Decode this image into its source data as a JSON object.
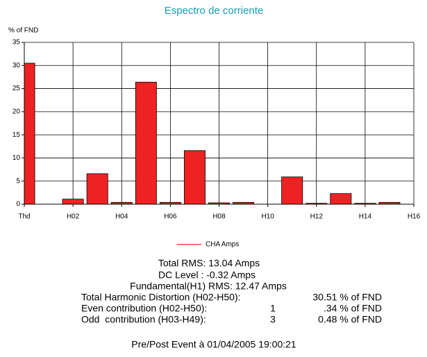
{
  "chart_data": {
    "type": "bar",
    "title": "Espectro de corriente",
    "ylabel": "% of FND",
    "x": [
      0,
      2,
      3,
      4,
      5,
      6,
      7,
      8,
      9,
      11,
      12,
      13,
      14,
      15
    ],
    "series": [
      {
        "name": "CHA Amps",
        "color": "#ee2222",
        "values": [
          30.5,
          1.1,
          6.6,
          0.4,
          26.4,
          0.4,
          11.6,
          0.3,
          0.4,
          5.9,
          0.2,
          2.3,
          0.2,
          0.4
        ]
      }
    ],
    "xlim": [
      0,
      16
    ],
    "xticks": [
      {
        "value": 0,
        "label": "Thd"
      },
      {
        "value": 2,
        "label": "H02"
      },
      {
        "value": 4,
        "label": "H04"
      },
      {
        "value": 6,
        "label": "H06"
      },
      {
        "value": 8,
        "label": "H08"
      },
      {
        "value": 10,
        "label": "H10"
      },
      {
        "value": 12,
        "label": "H12"
      },
      {
        "value": 14,
        "label": "H14"
      },
      {
        "value": 16,
        "label": "H16"
      }
    ],
    "ylim": [
      0,
      35
    ],
    "yticks": [
      0,
      5,
      10,
      15,
      20,
      25,
      30,
      35
    ],
    "grid": true
  },
  "stats": {
    "total_rms": "Total RMS: 13.04 Amps",
    "dc_level": "DC Level : -0.32 Amps",
    "fundamental": "Fundamental(H1) RMS: 12.47 Amps",
    "thd": {
      "label": "Total Harmonic Distortion (H02-H50):",
      "value": "30.51 % of FND"
    },
    "even": {
      "label": "Even contribution (H02-H50):",
      "count": "1",
      "value": ".34 % of FND"
    },
    "odd": {
      "label": "Odd  contribution (H03-H49):",
      "count": "3",
      "value": "0.48 % of FND"
    }
  },
  "footer": "Pre/Post Event à 01/04/2005 19:00:21"
}
